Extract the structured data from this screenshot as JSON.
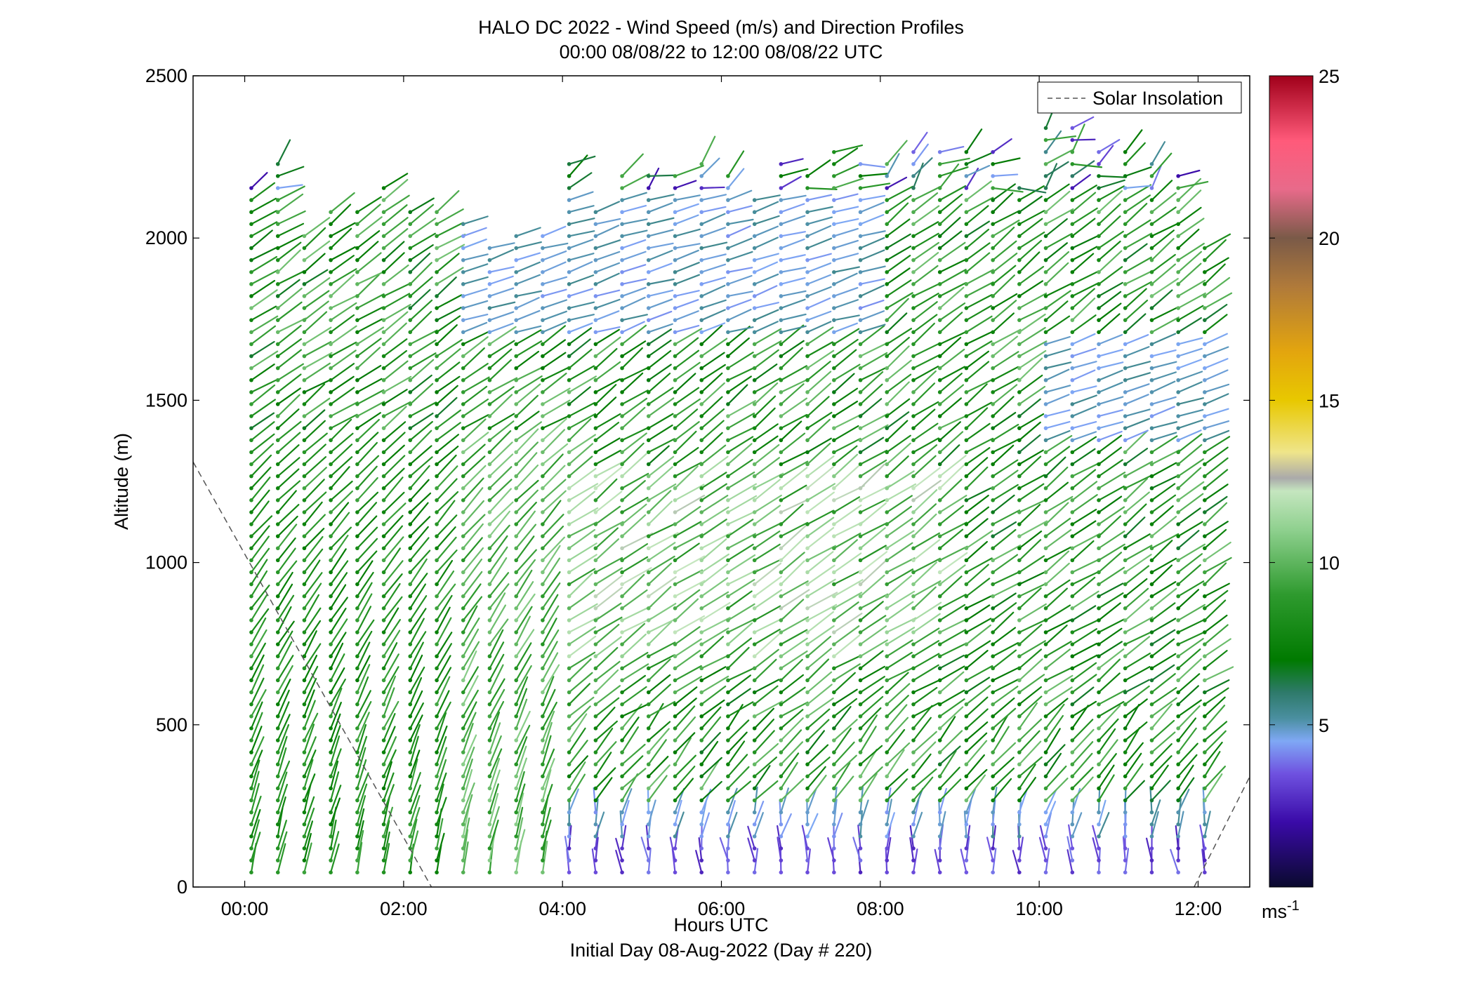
{
  "chart_data": {
    "type": "scatter",
    "subtype": "wind-barb-profile",
    "title": "HALO DC 2022 - Wind Speed (m/s) and Direction Profiles",
    "subtitle": "00:00 08/08/22 to 12:00 08/08/22  UTC",
    "xlabel": "Hours UTC",
    "xlabel2": "Initial Day 08-Aug-2022 (Day # 220)",
    "ylabel": "Altitude (m)",
    "xlim": [
      -0.65,
      12.65
    ],
    "ylim": [
      0,
      2500
    ],
    "xticks": [
      {
        "value": 0,
        "label": "00:00"
      },
      {
        "value": 2,
        "label": "02:00"
      },
      {
        "value": 4,
        "label": "04:00"
      },
      {
        "value": 6,
        "label": "06:00"
      },
      {
        "value": 8,
        "label": "08:00"
      },
      {
        "value": 10,
        "label": "10:00"
      },
      {
        "value": 12,
        "label": "12:00"
      }
    ],
    "yticks": [
      {
        "value": 0,
        "label": "0"
      },
      {
        "value": 500,
        "label": "500"
      },
      {
        "value": 1000,
        "label": "1000"
      },
      {
        "value": 1500,
        "label": "1500"
      },
      {
        "value": 2000,
        "label": "2000"
      },
      {
        "value": 2500,
        "label": "2500"
      }
    ],
    "grid": false,
    "legend": {
      "position": "top-right",
      "entries": [
        {
          "label": "Solar Insolation",
          "style": "dashed",
          "color": "#555555"
        }
      ]
    },
    "colorbar": {
      "range": [
        0,
        25
      ],
      "ticks": [
        {
          "value": 5,
          "label": "5"
        },
        {
          "value": 10,
          "label": "10"
        },
        {
          "value": 15,
          "label": "15"
        },
        {
          "value": 20,
          "label": "20"
        },
        {
          "value": 25,
          "label": "25"
        }
      ],
      "unit_label": "ms",
      "unit_exponent": "-1",
      "stops": [
        {
          "v": 0,
          "color": "#0a0a2e"
        },
        {
          "v": 2,
          "color": "#3a0aa8"
        },
        {
          "v": 3.5,
          "color": "#6f52e0"
        },
        {
          "v": 4.5,
          "color": "#7fa8f5"
        },
        {
          "v": 5.2,
          "color": "#4a8fa0"
        },
        {
          "v": 6,
          "color": "#2e7a6a"
        },
        {
          "v": 7,
          "color": "#007a00"
        },
        {
          "v": 9,
          "color": "#2e9a2e"
        },
        {
          "v": 11,
          "color": "#8ed08e"
        },
        {
          "v": 12.2,
          "color": "#c5e6bf"
        },
        {
          "v": 12.6,
          "color": "#aaaaaa"
        },
        {
          "v": 13.4,
          "color": "#efe58a"
        },
        {
          "v": 15,
          "color": "#e8c800"
        },
        {
          "v": 16.5,
          "color": "#e3a50e"
        },
        {
          "v": 18.5,
          "color": "#b07a3a"
        },
        {
          "v": 20,
          "color": "#7a5a48"
        },
        {
          "v": 21.5,
          "color": "#e86a8a"
        },
        {
          "v": 23,
          "color": "#ff5a7a"
        },
        {
          "v": 25,
          "color": "#a0001a"
        }
      ]
    },
    "solar_insolation": [
      {
        "x": [
          -0.65,
          2.35
        ],
        "y": [
          1310,
          0
        ]
      },
      {
        "x": [
          11.95,
          12.65
        ],
        "y": [
          0,
          340
        ]
      }
    ],
    "profile_times": [
      0.083,
      0.417,
      0.75,
      1.083,
      1.417,
      1.75,
      2.083,
      2.417,
      2.75,
      3.083,
      3.417,
      3.75,
      4.083,
      4.417,
      4.75,
      5.083,
      5.417,
      5.75,
      6.083,
      6.417,
      6.75,
      7.083,
      7.417,
      7.75,
      8.083,
      8.417,
      8.75,
      9.083,
      9.417,
      9.75,
      10.083,
      10.417,
      10.75,
      11.083,
      11.417,
      11.75,
      12.083
    ],
    "profile_tops": [
      2180,
      2230,
      2040,
      2100,
      2100,
      2170,
      2080,
      2100,
      2060,
      2000,
      2040,
      2020,
      2230,
      2100,
      2220,
      2220,
      2200,
      2260,
      2220,
      2150,
      2260,
      2200,
      2290,
      2250,
      2260,
      2290,
      2290,
      2300,
      2280,
      2180,
      2340,
      2360,
      2300,
      2270,
      2240,
      2220,
      2000
    ],
    "altitude_step_m": 37,
    "altitude_min_m": 45
  }
}
